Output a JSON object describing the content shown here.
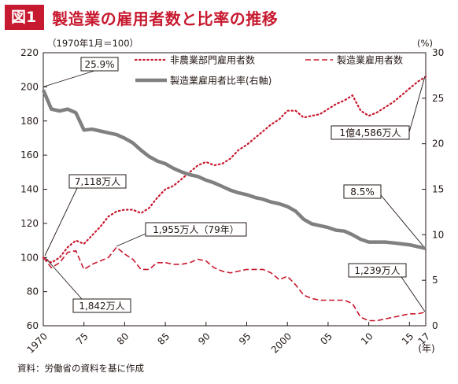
{
  "figure": {
    "badge": "図1",
    "title": "製造業の雇用者数と比率の推移",
    "source": "資料：労働省の資料を基に作成"
  },
  "colors": {
    "accent": "#c7192f",
    "series_nonmfg": "#c7192f",
    "series_mfg": "#c7192f",
    "series_ratio": "#808080",
    "text": "#231815"
  },
  "chart_data": {
    "type": "line",
    "left_axis_note": "（1970年1月＝100）",
    "right_axis_note": "(%)",
    "xunit": "(年)",
    "x_tick_labels": [
      "1970",
      "75",
      "80",
      "85",
      "90",
      "95",
      "2000",
      "05",
      "10",
      "15",
      "17"
    ],
    "x_tick_years": [
      1970,
      1975,
      1980,
      1985,
      1990,
      1995,
      2000,
      2005,
      2010,
      2015,
      2017
    ],
    "xlim": [
      1970,
      2017
    ],
    "ylim_left": [
      60,
      220
    ],
    "ylim_right": [
      0,
      30
    ],
    "yticks_left": [
      60,
      80,
      100,
      120,
      140,
      160,
      180,
      200,
      220
    ],
    "yticks_right": [
      0,
      5,
      10,
      15,
      20,
      25,
      30
    ],
    "grid": false,
    "legend_position": "top-right",
    "series": [
      {
        "name": "非農業部門雇用者数",
        "axis": "left",
        "style": "dotted",
        "x": [
          1970,
          1971,
          1972,
          1973,
          1974,
          1975,
          1976,
          1977,
          1978,
          1979,
          1980,
          1981,
          1982,
          1983,
          1984,
          1985,
          1986,
          1987,
          1988,
          1989,
          1990,
          1991,
          1992,
          1993,
          1994,
          1995,
          1996,
          1997,
          1998,
          1999,
          2000,
          2001,
          2002,
          2003,
          2004,
          2005,
          2006,
          2007,
          2008,
          2009,
          2010,
          2011,
          2012,
          2013,
          2014,
          2015,
          2016,
          2017
        ],
        "values": [
          100,
          97,
          100,
          106,
          110,
          108,
          113,
          118,
          124,
          127,
          128,
          128,
          126,
          129,
          135,
          140,
          142,
          146,
          150,
          154,
          156,
          154,
          155,
          158,
          163,
          166,
          170,
          174,
          178,
          181,
          186,
          186,
          182,
          183,
          184,
          187,
          190,
          192,
          195,
          186,
          183,
          185,
          188,
          191,
          195,
          199,
          203,
          206
        ]
      },
      {
        "name": "製造業雇用者数",
        "axis": "left",
        "style": "dashed",
        "x": [
          1970,
          1971,
          1972,
          1973,
          1974,
          1975,
          1976,
          1977,
          1978,
          1979,
          1980,
          1981,
          1982,
          1983,
          1984,
          1985,
          1986,
          1987,
          1988,
          1989,
          1990,
          1991,
          1992,
          1993,
          1994,
          1995,
          1996,
          1997,
          1998,
          1999,
          2000,
          2001,
          2002,
          2003,
          2004,
          2005,
          2006,
          2007,
          2008,
          2009,
          2010,
          2011,
          2012,
          2013,
          2014,
          2015,
          2016,
          2017
        ],
        "values": [
          100,
          94,
          97,
          103,
          104,
          93,
          96,
          98,
          100,
          106,
          102,
          99,
          93,
          93,
          97,
          97,
          96,
          96,
          97,
          99,
          98,
          94,
          92,
          91,
          92,
          93,
          93,
          93,
          91,
          87,
          89,
          84,
          78,
          76,
          75,
          75,
          75,
          75,
          73,
          65,
          63,
          63,
          64,
          65,
          66,
          67,
          67,
          68
        ]
      },
      {
        "name": "製造業雇用者比率(右軸)",
        "axis": "right",
        "style": "solid",
        "x": [
          1970,
          1971,
          1972,
          1973,
          1974,
          1975,
          1976,
          1977,
          1978,
          1979,
          1980,
          1981,
          1982,
          1983,
          1984,
          1985,
          1986,
          1987,
          1988,
          1989,
          1990,
          1991,
          1992,
          1993,
          1994,
          1995,
          1996,
          1997,
          1998,
          1999,
          2000,
          2001,
          2002,
          2003,
          2004,
          2005,
          2006,
          2007,
          2008,
          2009,
          2010,
          2011,
          2012,
          2013,
          2014,
          2015,
          2016,
          2017
        ],
        "values": [
          25.9,
          23.8,
          23.6,
          23.8,
          23.4,
          21.5,
          21.6,
          21.4,
          21.2,
          21.0,
          20.6,
          20.1,
          19.3,
          18.6,
          18.1,
          17.8,
          17.3,
          16.9,
          16.6,
          16.4,
          16.0,
          15.7,
          15.3,
          14.9,
          14.6,
          14.4,
          14.1,
          13.9,
          13.6,
          13.4,
          13.1,
          12.6,
          11.7,
          11.2,
          11.0,
          10.8,
          10.5,
          10.4,
          10.0,
          9.5,
          9.2,
          9.2,
          9.2,
          9.1,
          9.0,
          8.9,
          8.7,
          8.5
        ]
      }
    ],
    "annotations": [
      {
        "text": "25.9%",
        "x": 1970,
        "y": 25.9,
        "axis": "right"
      },
      {
        "text": "7,118万人",
        "x": 1970,
        "y": 100,
        "axis": "left"
      },
      {
        "text": "1,842万人",
        "x": 1970,
        "y": 100,
        "axis": "left"
      },
      {
        "text": "1,955万人（79年）",
        "x": 1979,
        "y": 106,
        "axis": "left"
      },
      {
        "text": "1億4,586万人",
        "x": 2017,
        "y": 206,
        "axis": "left"
      },
      {
        "text": "8.5%",
        "x": 2017,
        "y": 8.5,
        "axis": "right"
      },
      {
        "text": "1,239万人",
        "x": 2017,
        "y": 68,
        "axis": "left"
      }
    ]
  }
}
